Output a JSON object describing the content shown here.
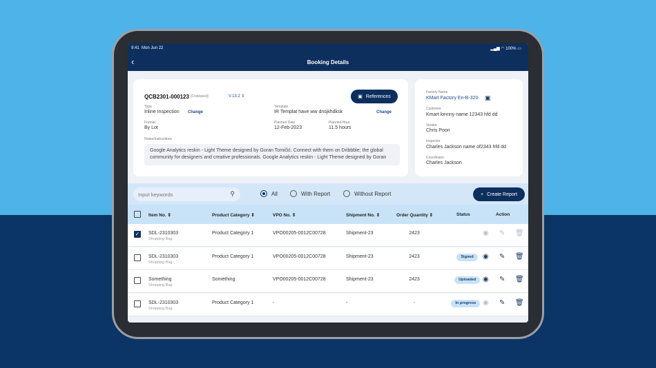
{
  "status_bar": {
    "time": "9:41",
    "date": "Mon Jun 22",
    "battery": "100%"
  },
  "header": {
    "title": "Booking Details",
    "back_icon": "chevron-left-icon"
  },
  "booking": {
    "id": "QCB2301-000123",
    "state": "[Outdated]",
    "version": "V.13.2",
    "references_label": "References",
    "type_label": "Type",
    "type_value": "Inline Inspection",
    "change_label": "Change",
    "template_label": "Template",
    "template_value": "IR Templat have ww dnsjkhdksk",
    "format_label": "Format",
    "format_value": "By Lot",
    "planned_date_label": "Planned Date",
    "planned_date_value": "12-Feb-2023",
    "planned_hour_label": "Planned Hour",
    "planned_hour_value": "11.5 hours",
    "notes_label": "Notes/Instructions",
    "notes_value": "Google Analytics reskin - Light Theme designed by Goran Tomičić. Connect with them on Dribbble; the global community for designers and creative professionals. Google Analytics reskin - Light Theme designed by Goran"
  },
  "side": {
    "factory_label": "Factory Name",
    "factory_value": "KMart Factory En-B-320",
    "customer_label": "Customer",
    "customer_value": "Kmart lonnny name 12343 hfd dd",
    "vendor_label": "Vendor",
    "vendor_value": "Chris Poon",
    "inspector_label": "Inspector",
    "inspector_value": "Charles Jackson name of2343 hfd dd",
    "coordinator_label": "Coordinator",
    "coordinator_value": "Charles Jackson"
  },
  "filter": {
    "search_placeholder": "Input keywords",
    "options": [
      "All",
      "With Report",
      "Without Report"
    ],
    "selected": "All",
    "create_label": "Create Report"
  },
  "table": {
    "columns": [
      "Item No.",
      "Product Category",
      "VPO No.",
      "Shipment No.",
      "Order Quantity",
      "Status",
      "Action"
    ],
    "rows": [
      {
        "item": "SDL-2310303",
        "sub": "Shopping Bag",
        "category": "Product Category 1",
        "vpo": "VPO00205-0012C00728",
        "shipment": "Shipment-23",
        "qty": "2423",
        "status": "",
        "checked": true,
        "actions_enabled": false
      },
      {
        "item": "SDL-2310303",
        "sub": "Shopping Bag",
        "category": "Product Category 1",
        "vpo": "VPO00205-0012C00728",
        "shipment": "Shipment-23",
        "qty": "2423",
        "status": "Signed",
        "checked": false,
        "actions_enabled": true
      },
      {
        "item": "Something",
        "sub": "Shopping Bag",
        "category": "Something",
        "vpo": "VPO00205-0012C00728",
        "shipment": "Shipment-23",
        "qty": "2423",
        "status": "Uploaded",
        "checked": false,
        "actions_enabled": true
      },
      {
        "item": "SDL-2310303",
        "sub": "Shopping Bag",
        "category": "Product Category 1",
        "vpo": "-",
        "shipment": "-",
        "qty": "-",
        "status": "In progress",
        "checked": false,
        "actions_enabled": "partial"
      }
    ]
  },
  "colors": {
    "primary": "#0d2f5e",
    "header_row": "#c8e3f8",
    "background_top": "#4db3e9",
    "background_bottom": "#0b3566"
  }
}
